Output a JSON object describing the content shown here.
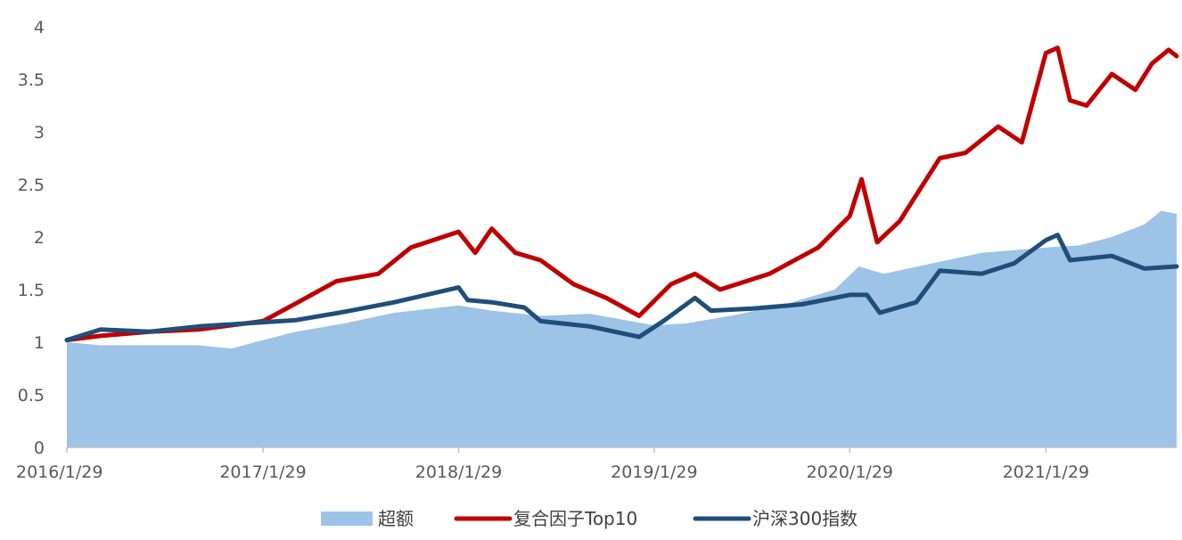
{
  "chart_data": {
    "type": "line",
    "title": "",
    "xlabel": "",
    "ylabel": "",
    "ylim": [
      0,
      4
    ],
    "y_ticks": [
      "0",
      "0.5",
      "1",
      "1.5",
      "2",
      "2.5",
      "3",
      "3.5",
      "4"
    ],
    "x_tick_labels": [
      "2016/1/29",
      "2017/1/29",
      "2018/1/29",
      "2019/1/29",
      "2020/1/29",
      "2021/1/29"
    ],
    "x_range": [
      "2016/1/29",
      "2021/9/30"
    ],
    "grid": false,
    "legend": {
      "placement": "bottom"
    },
    "series": [
      {
        "name": "超额",
        "kind": "area",
        "color": "#9dc3e6",
        "points": [
          [
            "2016/1/29",
            1.0
          ],
          [
            "2016/4/1",
            0.97
          ],
          [
            "2016/7/1",
            0.97
          ],
          [
            "2016/10/1",
            0.97
          ],
          [
            "2016/12/1",
            0.94
          ],
          [
            "2017/1/29",
            1.02
          ],
          [
            "2017/4/1",
            1.1
          ],
          [
            "2017/7/1",
            1.18
          ],
          [
            "2017/10/1",
            1.28
          ],
          [
            "2018/1/29",
            1.35
          ],
          [
            "2018/4/1",
            1.3
          ],
          [
            "2018/7/1",
            1.25
          ],
          [
            "2018/10/1",
            1.27
          ],
          [
            "2019/1/29",
            1.16
          ],
          [
            "2019/4/1",
            1.18
          ],
          [
            "2019/7/1",
            1.26
          ],
          [
            "2019/10/1",
            1.36
          ],
          [
            "2020/1/1",
            1.5
          ],
          [
            "2020/2/15",
            1.72
          ],
          [
            "2020/4/1",
            1.65
          ],
          [
            "2020/7/1",
            1.75
          ],
          [
            "2020/10/1",
            1.85
          ],
          [
            "2021/1/29",
            1.9
          ],
          [
            "2021/4/1",
            1.92
          ],
          [
            "2021/6/1",
            2.0
          ],
          [
            "2021/8/1",
            2.12
          ],
          [
            "2021/9/1",
            2.25
          ],
          [
            "2021/9/30",
            2.22
          ]
        ]
      },
      {
        "name": "复合因子Top10",
        "kind": "line",
        "color": "#c00000",
        "points": [
          [
            "2016/1/29",
            1.02
          ],
          [
            "2016/4/1",
            1.06
          ],
          [
            "2016/7/1",
            1.1
          ],
          [
            "2016/10/1",
            1.12
          ],
          [
            "2017/1/29",
            1.2
          ],
          [
            "2017/4/1",
            1.37
          ],
          [
            "2017/6/15",
            1.58
          ],
          [
            "2017/9/1",
            1.65
          ],
          [
            "2017/11/1",
            1.9
          ],
          [
            "2018/1/29",
            2.05
          ],
          [
            "2018/3/1",
            1.85
          ],
          [
            "2018/4/1",
            2.08
          ],
          [
            "2018/5/15",
            1.85
          ],
          [
            "2018/7/1",
            1.78
          ],
          [
            "2018/9/1",
            1.55
          ],
          [
            "2018/11/1",
            1.42
          ],
          [
            "2019/1/1",
            1.25
          ],
          [
            "2019/3/1",
            1.55
          ],
          [
            "2019/4/15",
            1.65
          ],
          [
            "2019/6/1",
            1.5
          ],
          [
            "2019/9/1",
            1.65
          ],
          [
            "2019/12/1",
            1.9
          ],
          [
            "2020/1/29",
            2.2
          ],
          [
            "2020/2/20",
            2.55
          ],
          [
            "2020/3/20",
            1.95
          ],
          [
            "2020/5/1",
            2.15
          ],
          [
            "2020/7/15",
            2.75
          ],
          [
            "2020/9/1",
            2.8
          ],
          [
            "2020/11/1",
            3.05
          ],
          [
            "2020/12/15",
            2.9
          ],
          [
            "2021/1/29",
            3.75
          ],
          [
            "2021/2/20",
            3.8
          ],
          [
            "2021/3/15",
            3.3
          ],
          [
            "2021/4/15",
            3.25
          ],
          [
            "2021/6/1",
            3.55
          ],
          [
            "2021/7/15",
            3.4
          ],
          [
            "2021/8/15",
            3.65
          ],
          [
            "2021/9/15",
            3.78
          ],
          [
            "2021/9/30",
            3.72
          ]
        ]
      },
      {
        "name": "沪深300指数",
        "kind": "line",
        "color": "#1f4e79",
        "points": [
          [
            "2016/1/29",
            1.02
          ],
          [
            "2016/4/1",
            1.12
          ],
          [
            "2016/7/1",
            1.1
          ],
          [
            "2016/10/1",
            1.15
          ],
          [
            "2017/1/1",
            1.18
          ],
          [
            "2017/4/1",
            1.21
          ],
          [
            "2017/7/1",
            1.29
          ],
          [
            "2017/10/1",
            1.38
          ],
          [
            "2018/1/29",
            1.52
          ],
          [
            "2018/2/15",
            1.4
          ],
          [
            "2018/4/1",
            1.38
          ],
          [
            "2018/6/1",
            1.33
          ],
          [
            "2018/7/1",
            1.2
          ],
          [
            "2018/10/1",
            1.15
          ],
          [
            "2019/1/1",
            1.05
          ],
          [
            "2019/2/15",
            1.2
          ],
          [
            "2019/4/15",
            1.42
          ],
          [
            "2019/5/15",
            1.3
          ],
          [
            "2019/8/1",
            1.32
          ],
          [
            "2019/11/1",
            1.36
          ],
          [
            "2020/1/29",
            1.45
          ],
          [
            "2020/3/1",
            1.45
          ],
          [
            "2020/3/25",
            1.28
          ],
          [
            "2020/6/1",
            1.38
          ],
          [
            "2020/7/15",
            1.68
          ],
          [
            "2020/10/1",
            1.65
          ],
          [
            "2020/12/1",
            1.75
          ],
          [
            "2021/1/29",
            1.97
          ],
          [
            "2021/2/20",
            2.02
          ],
          [
            "2021/3/15",
            1.78
          ],
          [
            "2021/6/1",
            1.82
          ],
          [
            "2021/8/1",
            1.7
          ],
          [
            "2021/9/30",
            1.72
          ]
        ]
      }
    ]
  }
}
